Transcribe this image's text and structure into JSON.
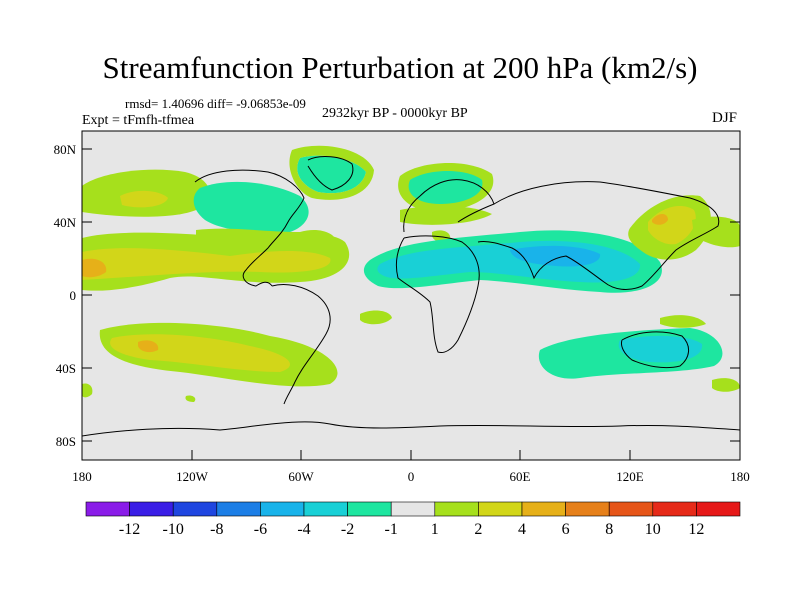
{
  "figure": {
    "title": "Streamfunction Perturbation at 200 hPa (km2/s)",
    "stats": "rmsd= 1.40696 diff= -9.06853e-09",
    "experiment": "Expt = tFmfh-tfmea",
    "period": "2932kyr BP - 0000kyr BP",
    "season": "DJF"
  },
  "axes": {
    "x_ticks": [
      "180",
      "120W",
      "60W",
      "0",
      "60E",
      "120E",
      "180"
    ],
    "y_ticks": [
      "80N",
      "40N",
      "0",
      "40S",
      "80S"
    ]
  },
  "colorbar": {
    "labels": [
      "-12",
      "-10",
      "-8",
      "-6",
      "-4",
      "-2",
      "-1",
      "1",
      "2",
      "4",
      "6",
      "8",
      "10",
      "12"
    ],
    "colors": [
      "#8a1ce8",
      "#3a1ee6",
      "#1f46e0",
      "#1c7ee6",
      "#19b3ea",
      "#19d0d6",
      "#1ee6a0",
      "#e6e6e6",
      "#a6e01c",
      "#d2d619",
      "#e6b019",
      "#e6801a",
      "#e65519",
      "#e62a19",
      "#e61919"
    ]
  },
  "palette": {
    "background": "#e6e6e6",
    "pos1": "#a6e01c",
    "pos2": "#d2d619",
    "pos3": "#e6b019",
    "neg1": "#1ee6a0",
    "neg2": "#19d0d6",
    "neg3": "#19b3ea"
  }
}
